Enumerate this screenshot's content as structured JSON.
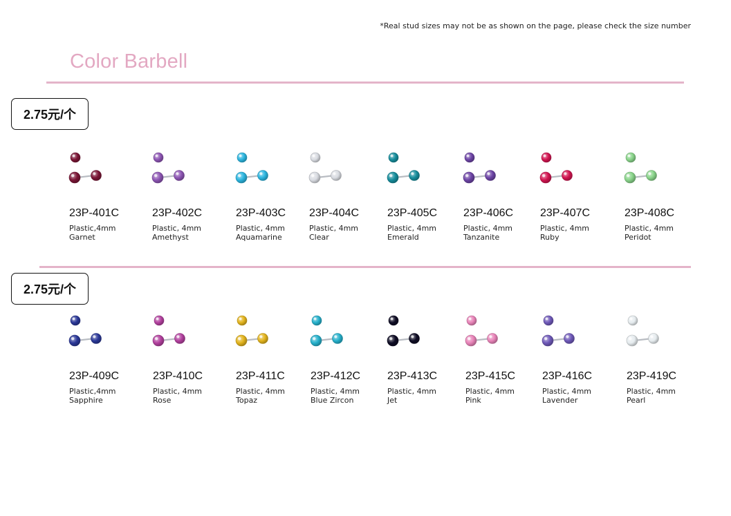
{
  "note": "*Real stud sizes may not be as shown on the page, please check the size number",
  "title": "Color Barbell",
  "sections": [
    {
      "price": "2.75元/个",
      "items": [
        {
          "code": "23P-401C",
          "spec": "Plastic,4mm",
          "color": "Garnet",
          "hex": "#7a1535"
        },
        {
          "code": "23P-402C",
          "spec": "Plastic, 4mm",
          "color": "Amethyst",
          "hex": "#8d55b4"
        },
        {
          "code": "23P-403C",
          "spec": "Plastic, 4mm",
          "color": "Aquamarine",
          "hex": "#2bb5df"
        },
        {
          "code": "23P-404C",
          "spec": "Plastic, 4mm",
          "color": "Clear",
          "hex": "#d9dce2"
        },
        {
          "code": "23P-405C",
          "spec": "Plastic, 4mm",
          "color": "Emerald",
          "hex": "#158d9c"
        },
        {
          "code": "23P-406C",
          "spec": "Plastic, 4mm",
          "color": "Tanzanite",
          "hex": "#6d44a6"
        },
        {
          "code": "23P-407C",
          "spec": "Plastic, 4mm",
          "color": "Ruby",
          "hex": "#d21450"
        },
        {
          "code": "23P-408C",
          "spec": "Plastic, 4mm",
          "color": "Peridot",
          "hex": "#89d48a"
        }
      ]
    },
    {
      "price": "2.75元/个",
      "items": [
        {
          "code": "23P-409C",
          "spec": "Plastic,4mm",
          "color": "Sapphire",
          "hex": "#2a3797"
        },
        {
          "code": "23P-410C",
          "spec": "Plastic, 4mm",
          "color": "Rose",
          "hex": "#b2409e"
        },
        {
          "code": "23P-411C",
          "spec": "Plastic, 4mm",
          "color": "Topaz",
          "hex": "#e2b31c"
        },
        {
          "code": "23P-412C",
          "spec": "Plastic, 4mm",
          "color": "Blue Zircon",
          "hex": "#25b0cb"
        },
        {
          "code": "23P-413C",
          "spec": "Plastic, 4mm",
          "color": "Jet",
          "hex": "#0e0c24"
        },
        {
          "code": "23P-415C",
          "spec": "Plastic, 4mm",
          "color": "Pink",
          "hex": "#e883b8"
        },
        {
          "code": "23P-416C",
          "spec": "Plastic, 4mm",
          "color": "Lavender",
          "hex": "#6e58b8"
        },
        {
          "code": "23P-419C",
          "spec": "Plastic, 4mm",
          "color": "Pearl",
          "hex": "#e6ecef"
        }
      ]
    }
  ]
}
